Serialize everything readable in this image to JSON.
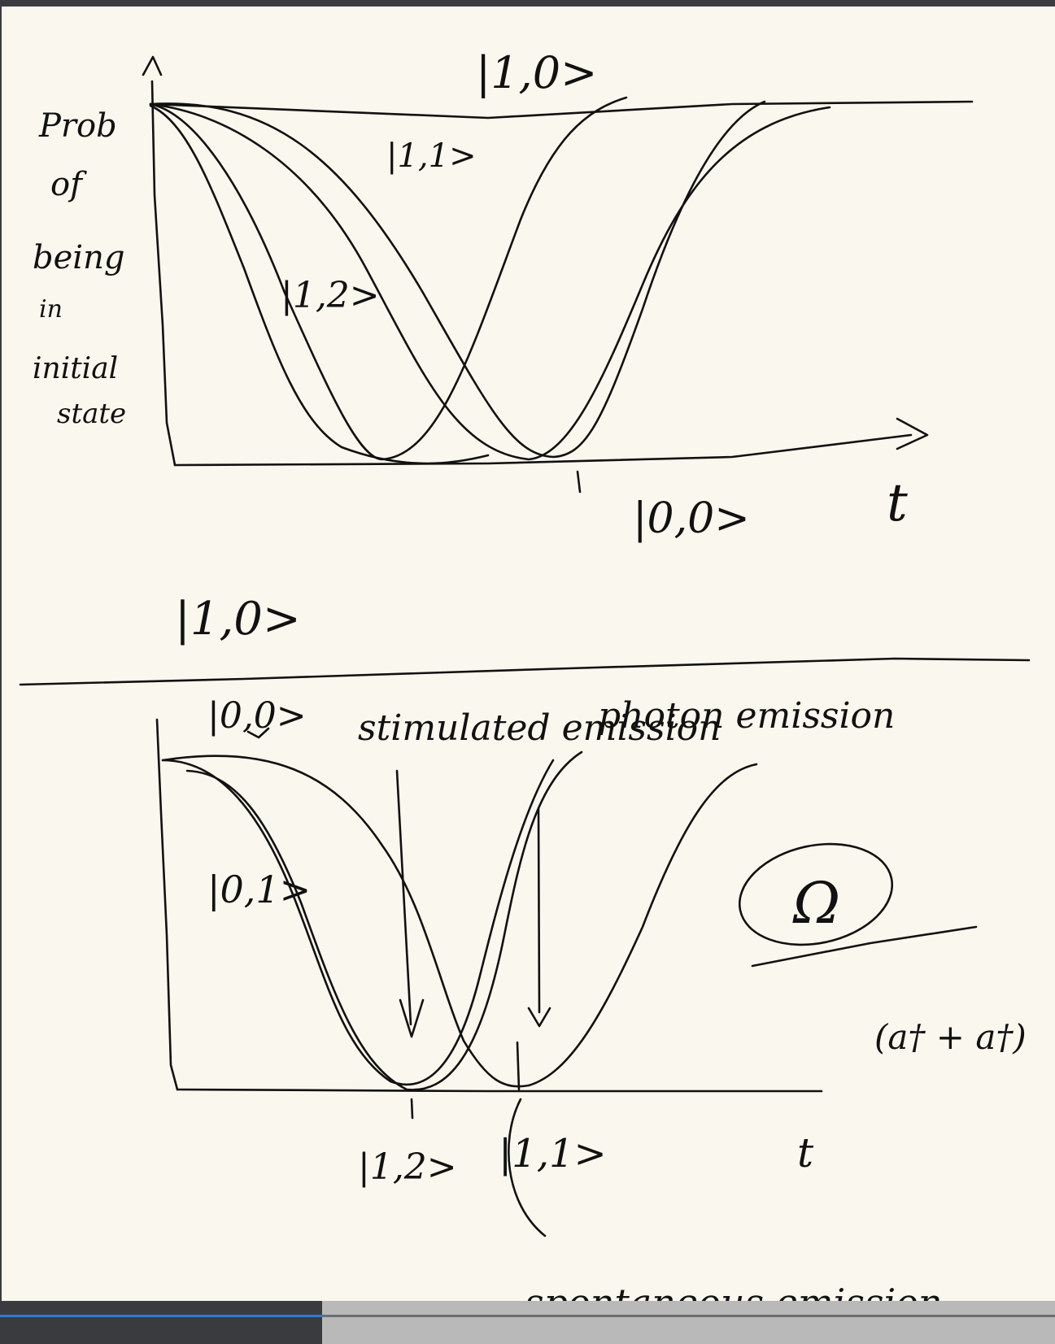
{
  "top_plot": {
    "y_label_lines": [
      "Prob",
      "of",
      "being",
      "in",
      "initial",
      "state"
    ],
    "x_label": "t",
    "curve_labels": {
      "state_1_0": "|1,0>",
      "state_1_1": "|1,1>",
      "state_1_2": "|1,2>",
      "state_0_0": "|0,0>"
    }
  },
  "middle_label": "|1,0>",
  "bottom_plot": {
    "state_00": "|0,0>",
    "state_01": "|0,1>",
    "stimulated_emission": "stimulated emission",
    "photon_emission": "photon emission",
    "state_12": "|1,2>",
    "state_11": "|1,1>",
    "x_label": "t",
    "omega": "Ω",
    "operator": "(a† + a†)",
    "spontaneous_emission": "spontaneous emission"
  },
  "player": {
    "progress": 0.305,
    "colors": {
      "progress": "#2f7ad6",
      "bar": "#3a3b3f",
      "paper": "#faf7ee"
    }
  }
}
